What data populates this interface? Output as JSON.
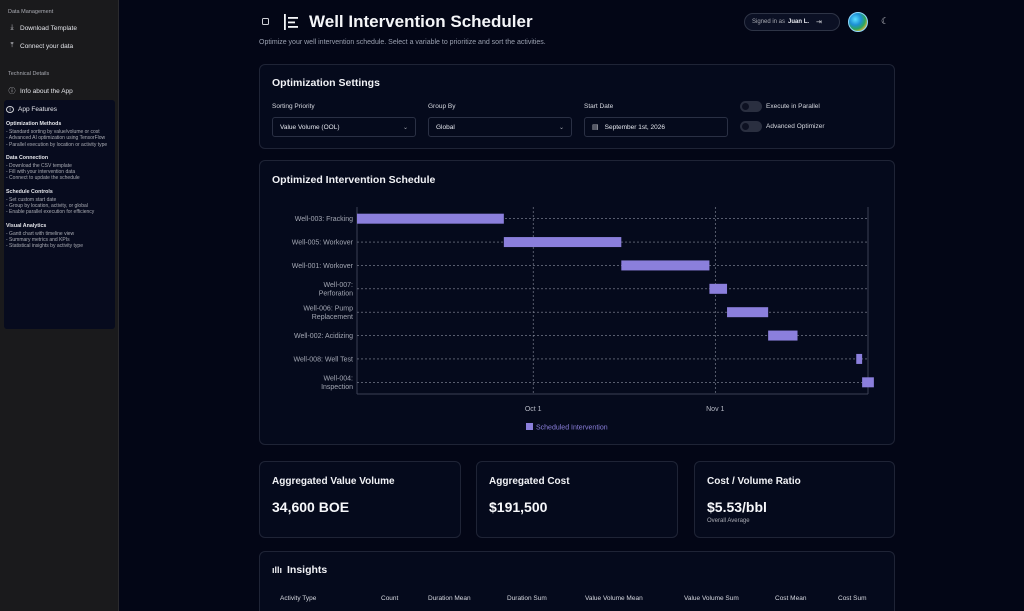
{
  "sidebar": {
    "data_section": "Data Management",
    "download_label": "Download Template",
    "connect_label": "Connect your data",
    "tech_section": "Technical Details",
    "info_label": "Info about the App",
    "features_title": "App Features",
    "features": [
      {
        "title": "Optimization Methods",
        "lines": [
          "- Standard sorting by value/volume or cost",
          "- Advanced AI optimization using TensorFlow",
          "- Parallel execution by location or activity type"
        ]
      },
      {
        "title": "Data Connection",
        "lines": [
          "- Download the CSV template",
          "- Fill with your intervention data",
          "- Connect to update the schedule"
        ]
      },
      {
        "title": "Schedule Controls",
        "lines": [
          "- Set custom start date",
          "- Group by location, activity, or global",
          "- Enable parallel execution for efficiency"
        ]
      },
      {
        "title": "Visual Analytics",
        "lines": [
          "- Gantt chart with timeline view",
          "- Summary metrics and KPIs",
          "- Statistical insights by activity type"
        ]
      }
    ]
  },
  "header": {
    "title": "Well Intervention Scheduler",
    "subtitle": "Optimize your well intervention schedule. Select a variable to prioritize and sort the activities.",
    "signed_in_label": "Signed in as",
    "user_name": "Juan L."
  },
  "settings": {
    "title": "Optimization Settings",
    "sorting_label": "Sorting Priority",
    "sorting_value": "Value Volume (OOL)",
    "group_label": "Group By",
    "group_value": "Global",
    "start_label": "Start Date",
    "start_value": "September 1st, 2026",
    "parallel_label": "Execute in Parallel",
    "advanced_label": "Advanced Optimizer"
  },
  "schedule": {
    "title": "Optimized Intervention Schedule",
    "legend": "Scheduled Intervention"
  },
  "chart_data": {
    "type": "bar",
    "orientation": "horizontal-gantt",
    "x_axis": "date",
    "x_range": [
      "2026-09-01",
      "2026-11-27"
    ],
    "x_ticks": [
      {
        "date": "2026-10-01",
        "label": "Oct 1"
      },
      {
        "date": "2026-11-01",
        "label": "Nov 1"
      }
    ],
    "grid": true,
    "legend_position": "bottom",
    "bar_color": "#8b7fdc",
    "series": [
      {
        "name": "Scheduled Intervention"
      }
    ],
    "tasks": [
      {
        "label": [
          "Well-003: Fracking"
        ],
        "start": "2026-09-01",
        "end": "2026-09-26"
      },
      {
        "label": [
          "Well-005: Workover"
        ],
        "start": "2026-09-26",
        "end": "2026-10-16"
      },
      {
        "label": [
          "Well-001: Workover"
        ],
        "start": "2026-10-16",
        "end": "2026-10-31"
      },
      {
        "label": [
          "Well-007:",
          "Perforation"
        ],
        "start": "2026-10-31",
        "end": "2026-11-03"
      },
      {
        "label": [
          "Well-006: Pump",
          "Replacement"
        ],
        "start": "2026-11-03",
        "end": "2026-11-10"
      },
      {
        "label": [
          "Well-002: Acidizing"
        ],
        "start": "2026-11-10",
        "end": "2026-11-15"
      },
      {
        "label": [
          "Well-008: Well Test"
        ],
        "start": "2026-11-25",
        "end": "2026-11-26"
      },
      {
        "label": [
          "Well-004:",
          "Inspection"
        ],
        "start": "2026-11-26",
        "end": "2026-11-28"
      }
    ]
  },
  "metrics": [
    {
      "label": "Aggregated Value Volume",
      "value": "34,600 BOE",
      "sub": ""
    },
    {
      "label": "Aggregated Cost",
      "value": "$191,500",
      "sub": ""
    },
    {
      "label": "Cost / Volume Ratio",
      "value": "$5.53/bbl",
      "sub": "Overall Average"
    }
  ],
  "insights": {
    "title": "Insights",
    "columns": [
      "Activity Type",
      "Count",
      "Duration Mean",
      "Duration Sum",
      "Value Volume Mean",
      "Value Volume Sum",
      "Cost Mean",
      "Cost Sum"
    ]
  },
  "colors": {
    "accent": "#8b7fdc",
    "background": "#030616",
    "sidebar": "#1a1a1c"
  }
}
